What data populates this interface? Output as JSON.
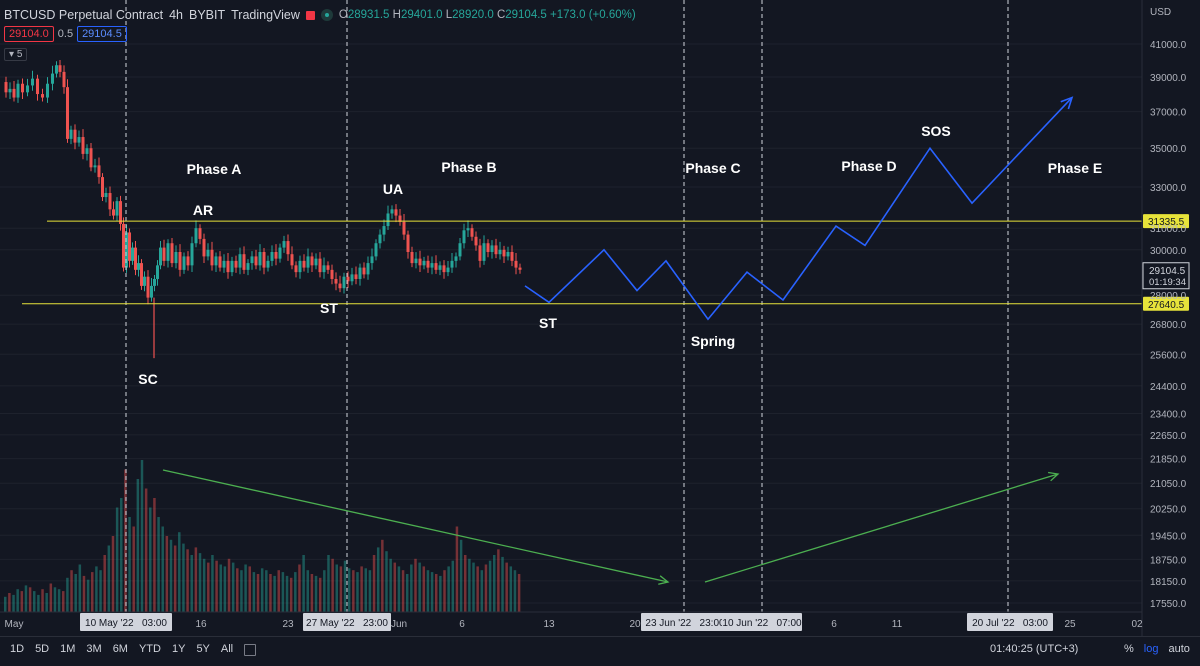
{
  "header": {
    "symbol": "BTCUSD Perpetual Contract",
    "interval": "4h",
    "exchange": "BYBIT",
    "platform": "TradingView",
    "ohlc": {
      "o_label": "O",
      "o": "28931.5",
      "h_label": "H",
      "h": "29401.0",
      "l_label": "L",
      "l": "28920.0",
      "c_label": "C",
      "c": "29104.5",
      "change": "+173.0 (+0.60%)"
    }
  },
  "quote": {
    "bid": "29104.0",
    "spread": "0.5",
    "ask": "29104.5"
  },
  "indicator_count": "5",
  "currency": "USD",
  "bottom": {
    "ranges": [
      "1D",
      "5D",
      "1M",
      "3M",
      "6M",
      "YTD",
      "1Y",
      "5Y",
      "All"
    ],
    "clock": "01:40:25 (UTC+3)",
    "pct": "%",
    "log": "log",
    "auto": "auto"
  },
  "colors": {
    "bg": "#131722",
    "up": "#26a69a",
    "down": "#ef5350",
    "projection": "#2962ff",
    "volume_trend": "#4caf50",
    "level": "#e7e33a",
    "grid": "#1e222d"
  },
  "chart_data": {
    "type": "candlestick",
    "ylim": [
      17000,
      42500
    ],
    "log_scale": true,
    "y_ticks": [
      "41000.0",
      "39000.0",
      "37000.0",
      "35000.0",
      "33000.0",
      "31000.0",
      "30000.0",
      "28000.0",
      "26800.0",
      "25600.0",
      "24400.0",
      "23400.0",
      "22650.0",
      "21850.0",
      "21050.0",
      "20250.0",
      "19450.0",
      "18750.0",
      "18150.0",
      "17550.0"
    ],
    "x_ticks": [
      "May",
      "16",
      "23",
      "Jun",
      "6",
      "13",
      "20",
      "6",
      "11",
      "25",
      "02"
    ],
    "date_markers": [
      "10 May '22   03:00",
      "27 May '22   23:00",
      "23 Jun '22   23:00",
      "10 Jun '22   07:00",
      "20 Jul '22   03:00"
    ],
    "levels": [
      {
        "label": "31335.5",
        "value": 31335.5
      },
      {
        "label": "27640.5",
        "value": 27640.5
      }
    ],
    "price_label": {
      "price": "29104.5",
      "countdown": "01:19:34",
      "value": 29104.5
    },
    "price_path": [
      [
        4,
        38700
      ],
      [
        8,
        38100
      ],
      [
        12,
        38300
      ],
      [
        16,
        37800
      ],
      [
        20,
        38600
      ],
      [
        25,
        38100
      ],
      [
        30,
        38500
      ],
      [
        35,
        38900
      ],
      [
        40,
        38000
      ],
      [
        45,
        37800
      ],
      [
        50,
        38600
      ],
      [
        55,
        39200
      ],
      [
        58,
        39700
      ],
      [
        62,
        39300
      ],
      [
        66,
        38400
      ],
      [
        69,
        35500
      ],
      [
        73,
        36000
      ],
      [
        77,
        35300
      ],
      [
        81,
        35600
      ],
      [
        85,
        34700
      ],
      [
        89,
        35000
      ],
      [
        93,
        34000
      ],
      [
        97,
        34100
      ],
      [
        101,
        33500
      ],
      [
        104,
        32500
      ],
      [
        108,
        32700
      ],
      [
        112,
        31900
      ],
      [
        115,
        31600
      ],
      [
        119,
        32300
      ],
      [
        122,
        31200
      ],
      [
        125,
        29200
      ],
      [
        128,
        30800
      ],
      [
        131,
        29500
      ],
      [
        134,
        30100
      ],
      [
        137,
        29100
      ],
      [
        140,
        29400
      ],
      [
        143,
        28400
      ],
      [
        146,
        28800
      ],
      [
        150,
        27900
      ],
      [
        153,
        28400
      ],
      [
        156,
        28700
      ],
      [
        159,
        29300
      ],
      [
        162,
        30100
      ],
      [
        166,
        29500
      ],
      [
        170,
        30300
      ],
      [
        174,
        29400
      ],
      [
        178,
        29900
      ],
      [
        182,
        29100
      ],
      [
        186,
        29700
      ],
      [
        190,
        29300
      ],
      [
        194,
        30300
      ],
      [
        198,
        31000
      ],
      [
        202,
        30500
      ],
      [
        206,
        29700
      ],
      [
        210,
        30000
      ],
      [
        214,
        29300
      ],
      [
        218,
        29700
      ],
      [
        222,
        29200
      ],
      [
        226,
        29500
      ],
      [
        230,
        29000
      ],
      [
        234,
        29500
      ],
      [
        238,
        29200
      ],
      [
        242,
        29800
      ],
      [
        246,
        29100
      ],
      [
        250,
        29400
      ],
      [
        254,
        29700
      ],
      [
        258,
        29300
      ],
      [
        262,
        29900
      ],
      [
        266,
        29200
      ],
      [
        270,
        29500
      ],
      [
        274,
        29900
      ],
      [
        278,
        29600
      ],
      [
        282,
        30100
      ],
      [
        286,
        30400
      ],
      [
        290,
        29800
      ],
      [
        294,
        29300
      ],
      [
        298,
        29000
      ],
      [
        302,
        29500
      ],
      [
        306,
        29200
      ],
      [
        310,
        29700
      ],
      [
        314,
        29300
      ],
      [
        318,
        29600
      ],
      [
        322,
        29000
      ],
      [
        326,
        29300
      ],
      [
        330,
        29100
      ],
      [
        334,
        28700
      ],
      [
        338,
        28500
      ],
      [
        342,
        28300
      ],
      [
        346,
        28800
      ],
      [
        350,
        28600
      ],
      [
        354,
        28900
      ],
      [
        358,
        28700
      ],
      [
        362,
        29200
      ],
      [
        366,
        28900
      ],
      [
        370,
        29400
      ],
      [
        374,
        29700
      ],
      [
        378,
        30300
      ],
      [
        382,
        30700
      ],
      [
        386,
        31100
      ],
      [
        390,
        31700
      ],
      [
        394,
        31900
      ],
      [
        398,
        31600
      ],
      [
        402,
        31300
      ],
      [
        406,
        30700
      ],
      [
        410,
        29900
      ],
      [
        414,
        29400
      ],
      [
        418,
        29600
      ],
      [
        422,
        29300
      ],
      [
        426,
        29500
      ],
      [
        430,
        29200
      ],
      [
        434,
        29400
      ],
      [
        438,
        29100
      ],
      [
        442,
        29300
      ],
      [
        446,
        29000
      ],
      [
        450,
        29200
      ],
      [
        454,
        29500
      ],
      [
        458,
        29700
      ],
      [
        462,
        30300
      ],
      [
        466,
        30900
      ],
      [
        470,
        31000
      ],
      [
        474,
        30600
      ],
      [
        478,
        30200
      ],
      [
        482,
        29500
      ],
      [
        486,
        30300
      ],
      [
        490,
        29900
      ],
      [
        494,
        30200
      ],
      [
        498,
        29800
      ],
      [
        502,
        30000
      ],
      [
        506,
        29700
      ],
      [
        510,
        29900
      ],
      [
        514,
        29500
      ],
      [
        518,
        29200
      ],
      [
        522,
        29104
      ]
    ],
    "projection_path": [
      [
        525,
        28400
      ],
      [
        549,
        27700
      ],
      [
        604,
        30000
      ],
      [
        637,
        28200
      ],
      [
        666,
        29500
      ],
      [
        708,
        27000
      ],
      [
        747,
        29000
      ],
      [
        783,
        27800
      ],
      [
        836,
        31100
      ],
      [
        865,
        30200
      ],
      [
        930,
        35000
      ],
      [
        972,
        32200
      ],
      [
        1072,
        37800
      ]
    ],
    "volume": [
      8,
      10,
      9,
      12,
      11,
      14,
      13,
      11,
      9,
      12,
      10,
      15,
      13,
      12,
      11,
      18,
      22,
      20,
      25,
      19,
      17,
      21,
      24,
      22,
      30,
      35,
      40,
      55,
      60,
      75,
      50,
      45,
      70,
      80,
      65,
      55,
      60,
      50,
      45,
      40,
      38,
      35,
      42,
      36,
      33,
      30,
      34,
      31,
      28,
      26,
      30,
      27,
      25,
      24,
      28,
      26,
      23,
      22,
      25,
      24,
      21,
      20,
      23,
      22,
      20,
      19,
      22,
      21,
      19,
      18,
      21,
      25,
      30,
      22,
      20,
      19,
      18,
      22,
      30,
      28,
      25,
      24,
      27,
      23,
      22,
      21,
      24,
      23,
      22,
      30,
      34,
      38,
      32,
      28,
      26,
      24,
      22,
      20,
      25,
      28,
      26,
      24,
      22,
      21,
      20,
      19,
      22,
      24,
      27,
      45,
      38,
      30,
      28,
      26,
      24,
      22,
      25,
      27,
      30,
      33,
      29,
      26,
      24,
      22,
      20
    ],
    "annotations": [
      {
        "text": "Phase A"
      },
      {
        "text": "AR"
      },
      {
        "text": "SC"
      },
      {
        "text": "ST"
      },
      {
        "text": "UA"
      },
      {
        "text": "Phase B"
      },
      {
        "text": "ST"
      },
      {
        "text": "Phase C"
      },
      {
        "text": "Spring"
      },
      {
        "text": "Phase D"
      },
      {
        "text": "SOS"
      },
      {
        "text": "Phase E"
      }
    ]
  }
}
